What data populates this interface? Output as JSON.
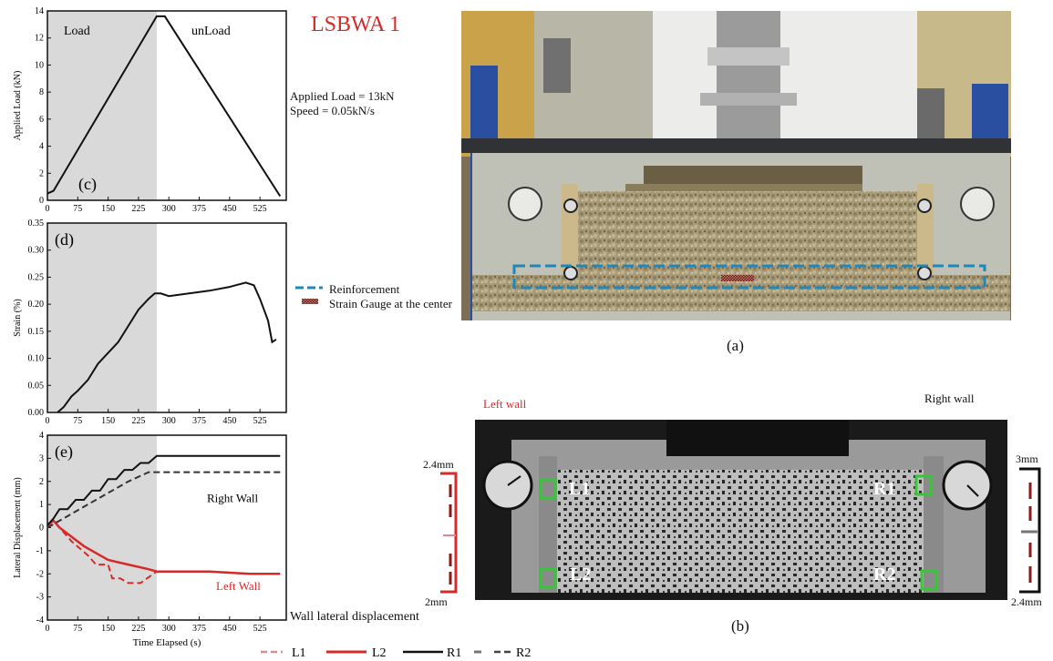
{
  "figure": {
    "title": "LSBWA 1",
    "test_info": {
      "load_line": "Applied Load = 13kN",
      "speed_line": "Speed = 0.05kN/s"
    },
    "legend_mid": {
      "reinforcement": "Reinforcement",
      "strain_gauge": "Strain Gauge at the center"
    },
    "caption_a": "(a)",
    "caption_b": "(b)",
    "left_wall_label": "Left wall",
    "right_wall_label": "Right wall",
    "left_gauge": {
      "top": "2.4mm",
      "bottom": "2mm"
    },
    "right_gauge": {
      "top": "3mm",
      "bottom": "2.4mm"
    },
    "sensors": [
      "L1",
      "L2",
      "R1",
      "R2"
    ],
    "wall_disp_label": "Wall lateral displacement",
    "bottom_legend": [
      "L1",
      "L2",
      "R1",
      "R2"
    ],
    "colors": {
      "red": "#d62a2a",
      "blue_dash": "#1f88b8",
      "gauge": "#8b1a1a"
    }
  },
  "chart_data": [
    {
      "type": "line",
      "panel": "(c)",
      "ylabel": "Applied Load (kN)",
      "ylim": [
        0,
        14
      ],
      "yticks": [
        "0",
        "2",
        "4",
        "6",
        "8",
        "10",
        "12",
        "14"
      ],
      "xlim": [
        0,
        590
      ],
      "xticks": [
        "0",
        "75",
        "150",
        "225",
        "300",
        "375",
        "450",
        "525"
      ],
      "shaded_until": 270,
      "annotations": [
        "Load",
        "unLoad"
      ],
      "series": [
        {
          "x": [
            0,
            15,
            270,
            290,
            575
          ],
          "y": [
            0.5,
            0.7,
            13.6,
            13.6,
            0.3
          ]
        }
      ]
    },
    {
      "type": "line",
      "panel": "(d)",
      "ylabel": "Strain (%)",
      "ylim": [
        0,
        0.35
      ],
      "yticks": [
        "0.00",
        "0.05",
        "0.10",
        "0.15",
        "0.20",
        "0.25",
        "0.30",
        "0.35"
      ],
      "xlim": [
        0,
        590
      ],
      "xticks": [
        "0",
        "75",
        "150",
        "225",
        "300",
        "375",
        "450",
        "525"
      ],
      "shaded_until": 270,
      "series": [
        {
          "x": [
            25,
            40,
            60,
            75,
            100,
            125,
            150,
            175,
            200,
            225,
            250,
            265,
            280,
            300,
            350,
            400,
            450,
            490,
            510,
            525,
            545,
            555,
            565
          ],
          "y": [
            0.0,
            0.01,
            0.03,
            0.04,
            0.06,
            0.09,
            0.11,
            0.13,
            0.16,
            0.19,
            0.21,
            0.22,
            0.22,
            0.215,
            0.22,
            0.225,
            0.232,
            0.24,
            0.235,
            0.21,
            0.17,
            0.13,
            0.135
          ]
        }
      ]
    },
    {
      "type": "line",
      "panel": "(e)",
      "ylabel": "Lateral Displacement (mm)",
      "xlabel": "Time Elapsed (s)",
      "ylim": [
        -4,
        4
      ],
      "yticks": [
        "-4",
        "-3",
        "-2",
        "-1",
        "0",
        "1",
        "2",
        "3",
        "4"
      ],
      "xlim": [
        0,
        590
      ],
      "xticks": [
        "0",
        "75",
        "150",
        "225",
        "300",
        "375",
        "450",
        "525"
      ],
      "shaded_until": 270,
      "annotations": [
        "Right Wall",
        "Left Wall"
      ],
      "series": [
        {
          "name": "L1",
          "x": [
            0,
            20,
            40,
            60,
            80,
            100,
            120,
            150,
            160,
            180,
            200,
            230,
            270
          ],
          "y": [
            0,
            0.2,
            -0.2,
            -0.6,
            -0.9,
            -1.2,
            -1.6,
            -1.6,
            -2.2,
            -2.2,
            -2.4,
            -2.4,
            -1.9
          ]
        },
        {
          "name": "L2",
          "x": [
            0,
            15,
            30,
            60,
            90,
            120,
            150,
            200,
            250,
            270,
            300,
            400,
            500,
            575
          ],
          "y": [
            0.1,
            0.3,
            0.0,
            -0.4,
            -0.8,
            -1.1,
            -1.4,
            -1.6,
            -1.8,
            -1.9,
            -1.9,
            -1.9,
            -2.0,
            -2.0
          ]
        },
        {
          "name": "R1",
          "x": [
            0,
            15,
            30,
            50,
            70,
            90,
            110,
            130,
            150,
            170,
            190,
            210,
            230,
            250,
            270,
            575
          ],
          "y": [
            0.1,
            0.4,
            0.8,
            0.8,
            1.2,
            1.2,
            1.6,
            1.6,
            2.1,
            2.1,
            2.5,
            2.5,
            2.8,
            2.8,
            3.1,
            3.1
          ]
        },
        {
          "name": "R2",
          "x": [
            0,
            30,
            60,
            100,
            150,
            200,
            250,
            270,
            575
          ],
          "y": [
            0.0,
            0.3,
            0.6,
            1.0,
            1.5,
            2.0,
            2.4,
            2.4,
            2.4
          ]
        }
      ]
    }
  ]
}
